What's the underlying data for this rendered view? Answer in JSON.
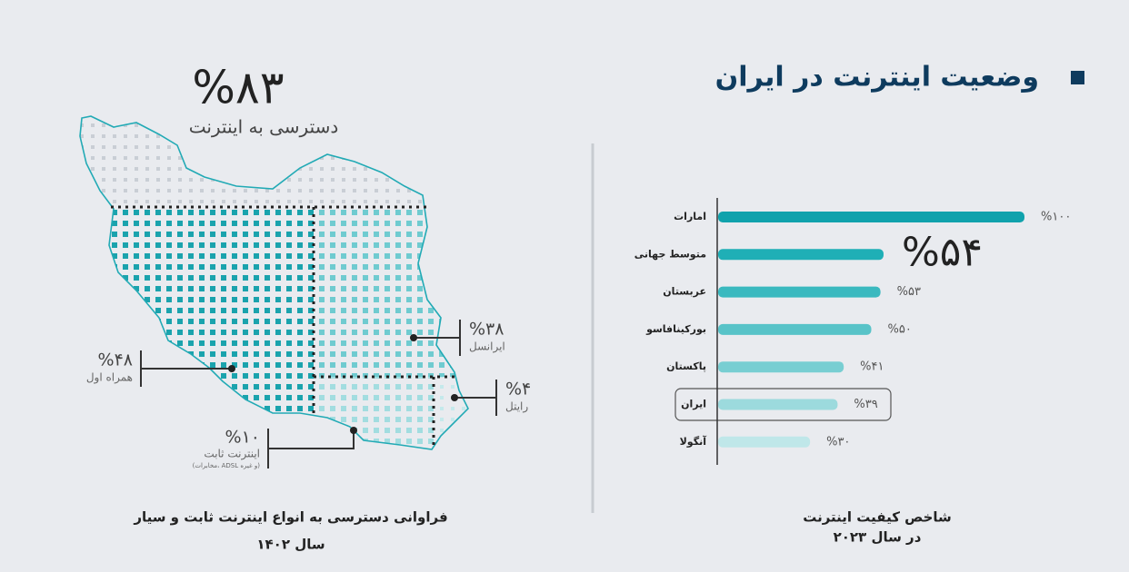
{
  "title": "وضعیت اینترنت در ایران",
  "map": {
    "headline": "%۸۳",
    "headline_label": "دسترسی به اینترنت",
    "operators": [
      {
        "value": "%۳۸",
        "name": "ایرانسل"
      },
      {
        "value": "%۴۸",
        "name": "همراه اول"
      },
      {
        "value": "%۴",
        "name": "رایتل"
      },
      {
        "value": "%۱۰",
        "name": "اینترنت ثابت",
        "note": "(مخابرات، ADSL و غیره)"
      }
    ],
    "caption": "فراوانی دسترسی به انواع اینترنت ثابت و سیار",
    "caption_year": "سال ۱۴۰۲"
  },
  "chart_data": {
    "type": "bar",
    "orientation": "horizontal",
    "title": "شاخص کیفیت اینترنت",
    "subtitle": "در سال ۲۰۲۳",
    "categories": [
      "امارات",
      "متوسط جهانی",
      "عربستان",
      "بورکینافاسو",
      "پاکستان",
      "ایران",
      "آنگولا"
    ],
    "values": [
      100,
      54,
      53,
      50,
      41,
      39,
      30
    ],
    "value_labels": [
      "%۱۰۰",
      "%۵۴",
      "%۵۳",
      "%۵۰",
      "%۴۱",
      "%۳۹",
      "%۳۰"
    ],
    "colors": [
      "#10a2ac",
      "#1fafb6",
      "#3ab9bf",
      "#58c3c8",
      "#78ced2",
      "#9cdadd",
      "#bfe7e9"
    ],
    "xlim": [
      0,
      100
    ]
  }
}
